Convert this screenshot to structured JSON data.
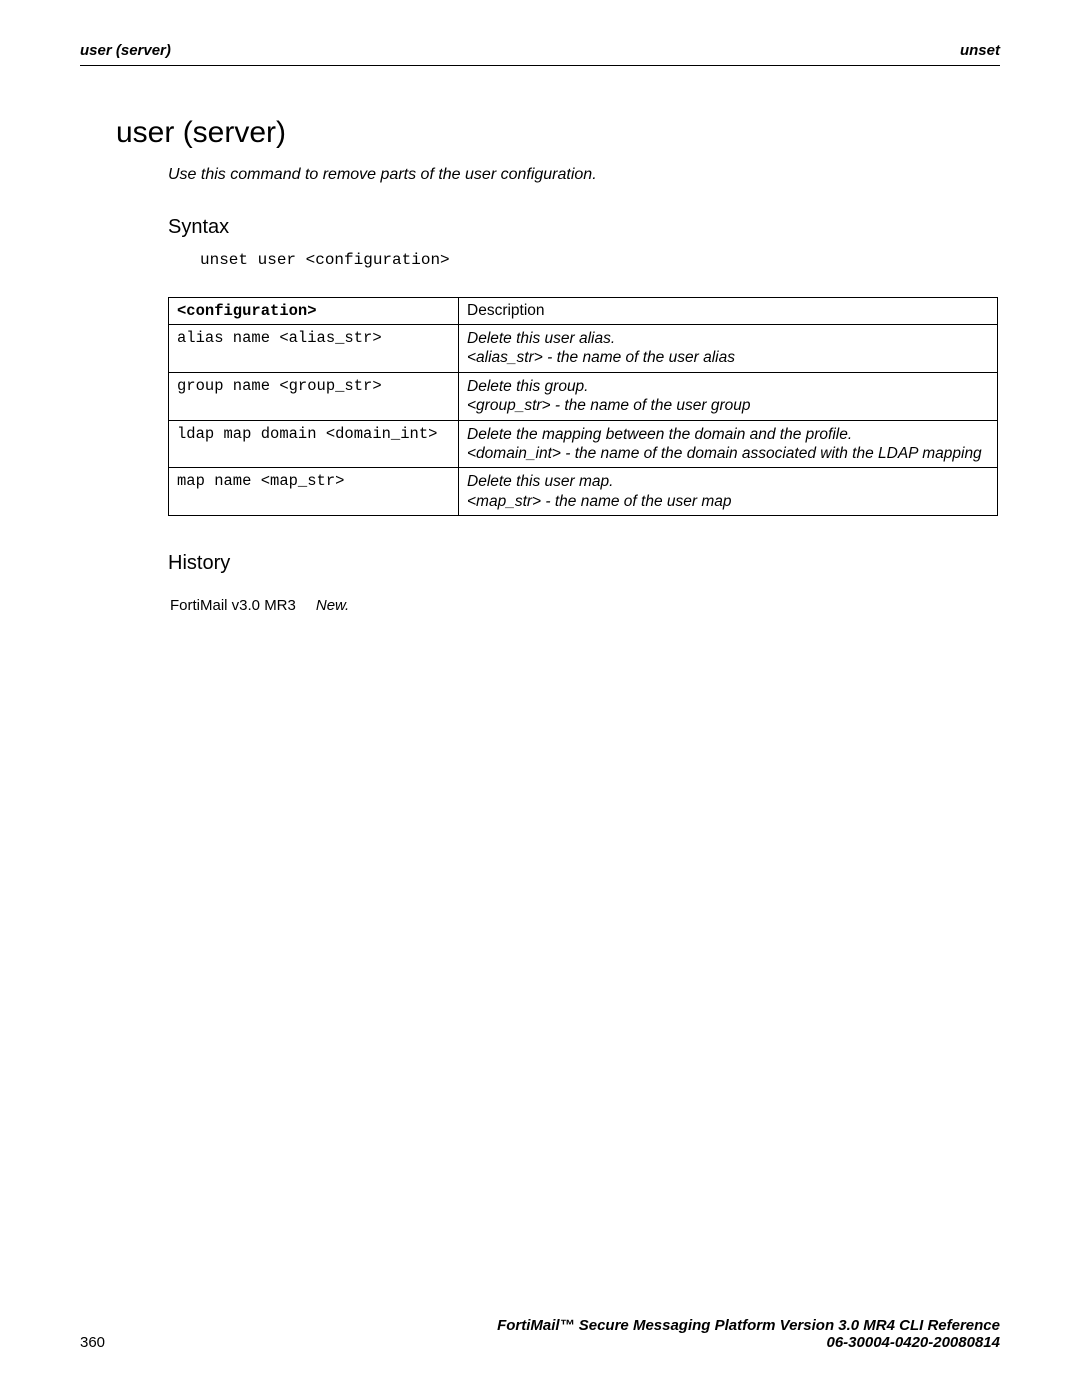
{
  "header": {
    "left": "user (server)",
    "right": "unset"
  },
  "title": "user (server)",
  "intro": "Use this command to remove parts of the user configuration.",
  "syntax": {
    "heading": "Syntax",
    "code": "unset user <configuration>"
  },
  "table": {
    "headers": {
      "config": "<configuration>",
      "description": "Description"
    },
    "rows": [
      {
        "config": "alias name <alias_str>",
        "desc1": "Delete this user alias.",
        "desc2": "<alias_str> - the name of the user alias"
      },
      {
        "config": "group name <group_str>",
        "desc1": "Delete this group.",
        "desc2": "<group_str> - the name of the user group"
      },
      {
        "config": "ldap map domain <domain_int>",
        "desc1": "Delete the mapping between the domain and the profile.",
        "desc2": "<domain_int> - the name of the domain associated with the LDAP mapping"
      },
      {
        "config": "map name <map_str>",
        "desc1": "Delete this user map.",
        "desc2": "<map_str> - the name of the user map"
      }
    ]
  },
  "history": {
    "heading": "History",
    "version": "FortiMail v3.0 MR3",
    "status": "New."
  },
  "footer": {
    "page_number": "360",
    "line1": "FortiMail™ Secure Messaging Platform Version 3.0 MR4 CLI Reference",
    "line2": "06-30004-0420-20080814"
  }
}
